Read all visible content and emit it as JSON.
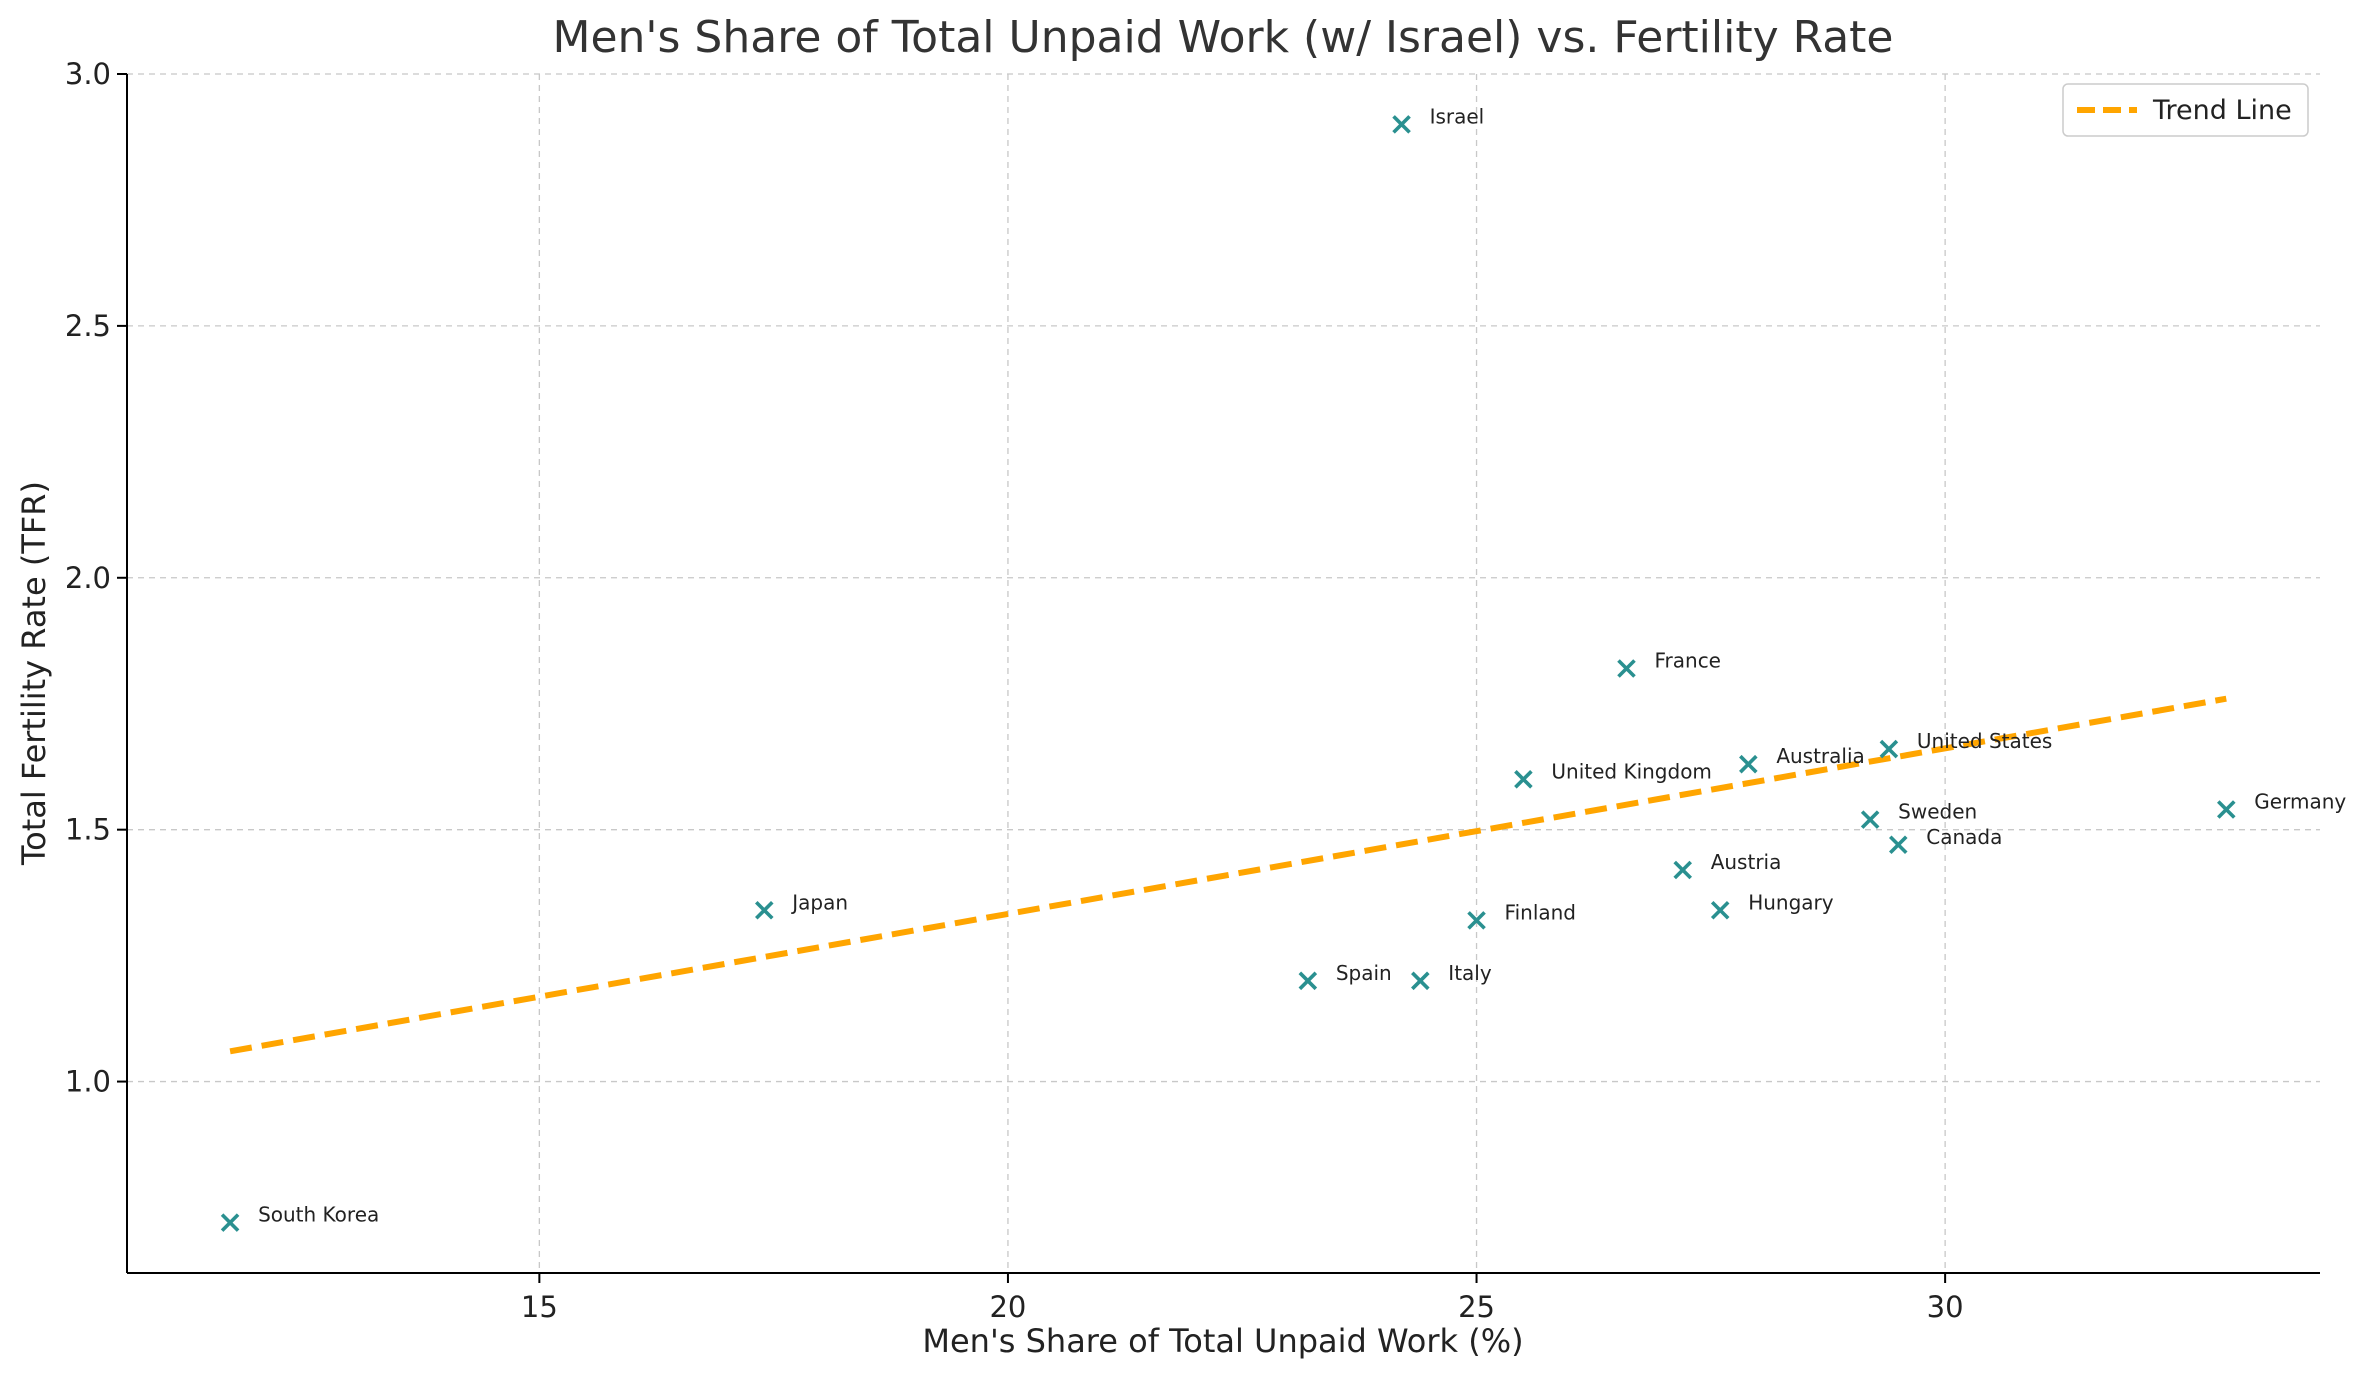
{
  "chart_data": {
    "type": "scatter",
    "title": "Men's Share of Total Unpaid Work (w/ Israel) vs. Fertility Rate",
    "xlabel": "Men's Share of Total Unpaid Work (%)",
    "ylabel": "Total Fertility Rate (TFR)",
    "xlim": [
      10.6,
      34.0
    ],
    "ylim": [
      0.62,
      3.0
    ],
    "x_ticks": [
      15,
      20,
      25,
      30
    ],
    "y_ticks": [
      1.0,
      1.5,
      2.0,
      2.5,
      3.0
    ],
    "x_tick_labels": [
      "15",
      "20",
      "25",
      "30"
    ],
    "y_tick_labels": [
      "1.0",
      "1.5",
      "2.0",
      "2.5",
      "3.0"
    ],
    "grid": true,
    "legend_position": "top-right",
    "marker_color": "#2a9090",
    "trend_color": "#FFA500",
    "points": [
      {
        "label": "South Korea",
        "x": 11.7,
        "y": 0.72
      },
      {
        "label": "Japan",
        "x": 17.4,
        "y": 1.34
      },
      {
        "label": "Spain",
        "x": 23.2,
        "y": 1.2
      },
      {
        "label": "Israel",
        "x": 24.2,
        "y": 2.9
      },
      {
        "label": "Italy",
        "x": 24.4,
        "y": 1.2
      },
      {
        "label": "Finland",
        "x": 25.0,
        "y": 1.32
      },
      {
        "label": "United Kingdom",
        "x": 25.5,
        "y": 1.6
      },
      {
        "label": "France",
        "x": 26.6,
        "y": 1.82
      },
      {
        "label": "Austria",
        "x": 27.2,
        "y": 1.42
      },
      {
        "label": "Hungary",
        "x": 27.6,
        "y": 1.34
      },
      {
        "label": "Australia",
        "x": 27.9,
        "y": 1.63
      },
      {
        "label": "Sweden",
        "x": 29.2,
        "y": 1.52
      },
      {
        "label": "United States",
        "x": 29.4,
        "y": 1.66
      },
      {
        "label": "Canada",
        "x": 29.5,
        "y": 1.47
      },
      {
        "label": "Germany",
        "x": 33.0,
        "y": 1.54
      }
    ],
    "trend_line": {
      "name": "Trend Line",
      "x": [
        11.7,
        33.0
      ],
      "y": [
        1.06,
        1.76
      ]
    }
  }
}
